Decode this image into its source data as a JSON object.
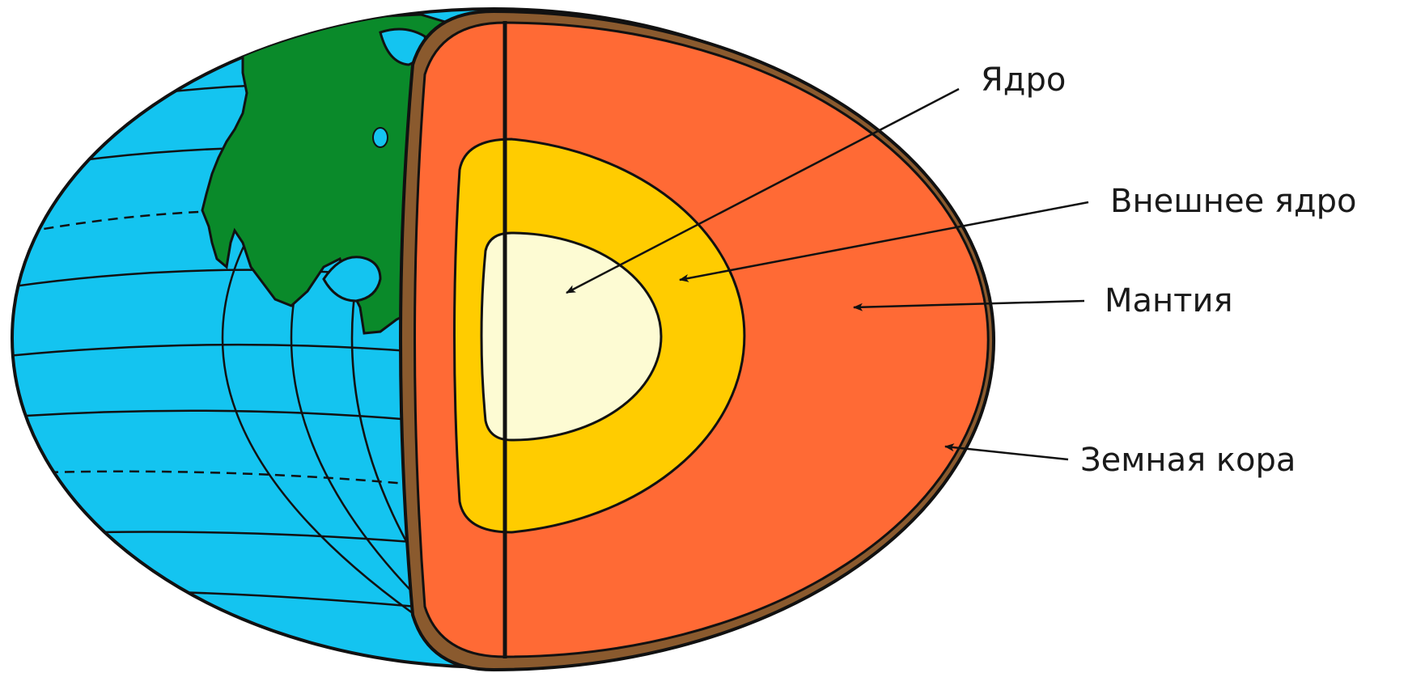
{
  "labels": {
    "inner_core": "Ядро",
    "outer_core": "Внешнее ядро",
    "mantle": "Мантия",
    "crust": "Земная кора"
  },
  "colors": {
    "ocean": "#14c4f0",
    "land": "#0a8a2a",
    "crust": "#8a5a2e",
    "mantle": "#ff6a35",
    "outer_core": "#ffcc00",
    "inner_core": "#fdfbd3",
    "outline": "#111111"
  },
  "icons": [
    "arrow-head-icon"
  ]
}
